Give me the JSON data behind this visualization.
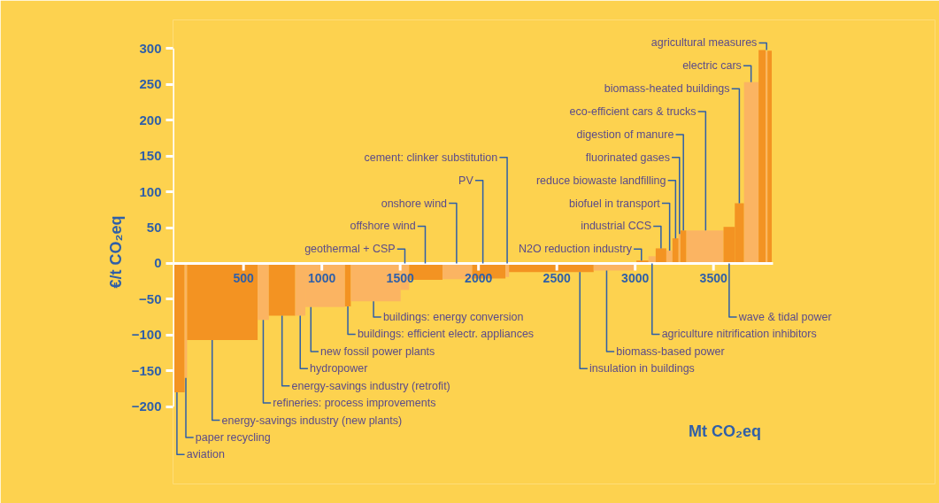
{
  "chart_data": {
    "type": "histogram",
    "xlabel": "Mt CO₂eq",
    "ylabel": "€/t CO₂eq",
    "bins": [
      55,
      124,
      140,
      590,
      662,
      830,
      895,
      1148,
      1185,
      1503,
      1557,
      1770,
      1960,
      2172,
      2195,
      2735,
      3008,
      3085,
      3131,
      3199,
      3238,
      3277,
      3289,
      3327,
      3564,
      3636,
      3695,
      3788,
      3833,
      3845,
      3872
    ],
    "values": [
      -180,
      -160,
      -107,
      -79,
      -73,
      -73,
      -61,
      -60,
      -53,
      -37,
      -23,
      -22,
      -21,
      -19,
      -12,
      -10,
      4,
      10,
      21,
      18,
      35,
      41,
      46,
      46,
      51,
      84,
      253,
      298,
      296,
      297
    ],
    "colors": [
      "#f39322",
      "#fbb462",
      "#f39322",
      "#fbb462",
      "#f39322",
      "#fbb462",
      "#fbb462",
      "#f39322",
      "#fbb462",
      "#fbb462",
      "#f39322",
      "#fbb462",
      "#f39322",
      "#fbb462",
      "#f39322",
      "#fbb462",
      "#f39322",
      "#fbb462",
      "#f39322",
      "#fbb462",
      "#f39322",
      "#fbb462",
      "#f39322",
      "#fbb462",
      "#f39322",
      "#f39322",
      "#fbb462",
      "#f39322",
      "#fbb462",
      "#f39322"
    ],
    "xlim": [
      50,
      3880
    ],
    "ylim": [
      -200,
      300
    ],
    "xticks": [
      500,
      1000,
      1500,
      2000,
      2500,
      3000,
      3500
    ],
    "yticks": [
      -200,
      -150,
      -100,
      -50,
      0,
      50,
      100,
      150,
      200,
      250,
      300
    ],
    "annotations": [
      {
        "text": "aviation",
        "x": 75,
        "y": -180
      },
      {
        "text": "paper recycling",
        "x": 132,
        "y": -160
      },
      {
        "text": "energy-savings industry (new plants)",
        "x": 300,
        "y": -107
      },
      {
        "text": "refineries: process improvements",
        "x": 626,
        "y": -79
      },
      {
        "text": "energy-savings industry (retrofit)",
        "x": 746,
        "y": -73
      },
      {
        "text": "hydropower",
        "x": 862,
        "y": -73
      },
      {
        "text": "new fossil power plants",
        "x": 930,
        "y": -61
      },
      {
        "text": "buildings: efficient electr. appliances",
        "x": 1166,
        "y": -60
      },
      {
        "text": "buildings: energy conversion",
        "x": 1330,
        "y": -53
      },
      {
        "text": "geothermal + CSP",
        "x": 1530,
        "y": 0
      },
      {
        "text": "offshore wind",
        "x": 1660,
        "y": 0
      },
      {
        "text": "onshore wind",
        "x": 1860,
        "y": 0
      },
      {
        "text": "PV",
        "x": 2028,
        "y": 0
      },
      {
        "text": "cement: clinker substitution",
        "x": 2183,
        "y": 0
      },
      {
        "text": "insulation in buildings",
        "x": 2647,
        "y": -12
      },
      {
        "text": "biomass-based power",
        "x": 2818,
        "y": -10
      },
      {
        "text": "N2O reduction industry",
        "x": 3040,
        "y": 4
      },
      {
        "text": "agriculture nitrification inhibitors",
        "x": 3108,
        "y": 0
      },
      {
        "text": "industrial CCS",
        "x": 3165,
        "y": 21
      },
      {
        "text": "biofuel in transport",
        "x": 3220,
        "y": 18
      },
      {
        "text": "reduce biowaste landfilling",
        "x": 3258,
        "y": 35
      },
      {
        "text": "fluorinated gases",
        "x": 3283,
        "y": 41
      },
      {
        "text": "digestion of manure",
        "x": 3308,
        "y": 46
      },
      {
        "text": "eco-efficient cars & trucks",
        "x": 3450,
        "y": 46
      },
      {
        "text": "wave & tidal power",
        "x": 3600,
        "y": 0
      },
      {
        "text": "biomass-heated buildings",
        "x": 3665,
        "y": 84
      },
      {
        "text": "electric cars",
        "x": 3740,
        "y": 253
      },
      {
        "text": "agricultural measures",
        "x": 3839,
        "y": 298
      }
    ]
  }
}
